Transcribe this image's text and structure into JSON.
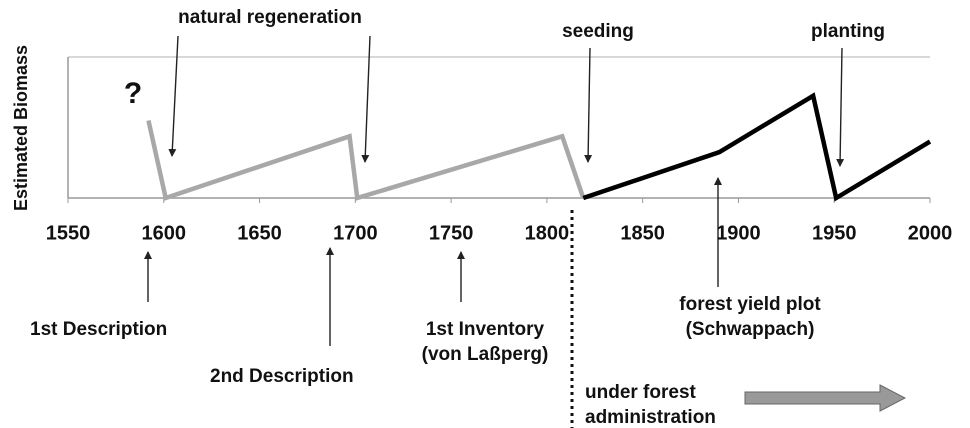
{
  "chart_data": {
    "type": "line",
    "y_label": "Estimated Biomass",
    "xlim": [
      1550,
      2000
    ],
    "xticks": [
      1550,
      1600,
      1650,
      1700,
      1750,
      1800,
      1850,
      1900,
      1950,
      2000
    ],
    "ylim": [
      0,
      4
    ],
    "series": [
      {
        "color": "#a8a8a8",
        "x": [
          1592,
          1601,
          1697,
          1701,
          1808,
          1819
        ],
        "values": [
          2.2,
          0,
          1.75,
          0,
          1.75,
          0
        ]
      },
      {
        "color": "#000000",
        "x": [
          1819,
          1890,
          1939,
          1951,
          2000
        ],
        "values": [
          0,
          1.3,
          2.9,
          0,
          1.6
        ]
      }
    ],
    "annotations": [
      [
        "natural regeneration"
      ],
      [
        "seeding"
      ],
      [
        "planting"
      ],
      [
        "?"
      ],
      [
        "1st Description"
      ],
      [
        "2nd Description"
      ],
      [
        "1st Inventory",
        "(von Laßperg)"
      ],
      [
        "forest yield plot",
        "(Schwappach)"
      ],
      [
        "under forest",
        "administration"
      ]
    ]
  }
}
